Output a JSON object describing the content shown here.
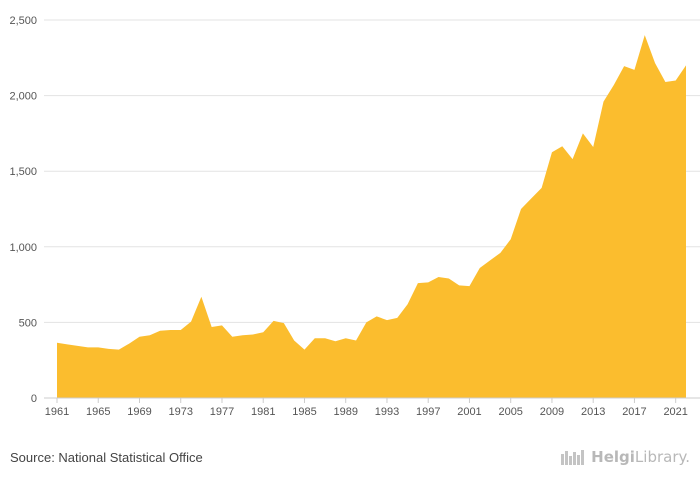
{
  "chart_data": {
    "type": "area",
    "title": "",
    "xlabel": "",
    "ylabel": "",
    "x": [
      1961,
      1962,
      1963,
      1964,
      1965,
      1966,
      1967,
      1968,
      1969,
      1970,
      1971,
      1972,
      1973,
      1974,
      1975,
      1976,
      1977,
      1978,
      1979,
      1980,
      1981,
      1982,
      1983,
      1984,
      1985,
      1986,
      1987,
      1988,
      1989,
      1990,
      1991,
      1992,
      1993,
      1994,
      1995,
      1996,
      1997,
      1998,
      1999,
      2000,
      2001,
      2002,
      2003,
      2004,
      2005,
      2006,
      2007,
      2008,
      2009,
      2010,
      2011,
      2012,
      2013,
      2014,
      2015,
      2016,
      2017,
      2018,
      2019,
      2020,
      2021,
      2022
    ],
    "values": [
      365,
      355,
      345,
      335,
      335,
      325,
      320,
      360,
      405,
      415,
      445,
      450,
      450,
      505,
      670,
      470,
      480,
      405,
      415,
      420,
      435,
      510,
      495,
      380,
      320,
      395,
      395,
      375,
      395,
      380,
      500,
      540,
      515,
      530,
      620,
      760,
      765,
      800,
      790,
      745,
      740,
      860,
      910,
      960,
      1050,
      1250,
      1320,
      1390,
      1625,
      1665,
      1580,
      1750,
      1660,
      1960,
      2070,
      2195,
      2170,
      2400,
      2215,
      2090,
      2100,
      2200
    ],
    "x_ticks": [
      "1961",
      "1965",
      "1969",
      "1973",
      "1977",
      "1981",
      "1985",
      "1989",
      "1993",
      "1997",
      "2001",
      "2005",
      "2009",
      "2013",
      "2017",
      "2021"
    ],
    "y_ticks": [
      "0",
      "500",
      "1,000",
      "1,500",
      "2,000",
      "2,500"
    ],
    "ylim": [
      0,
      2500
    ],
    "grid": true,
    "legend": "none",
    "series_color": "#fbbd2e",
    "grid_color": "#e3e3e3",
    "axis_color": "#cccccc"
  },
  "footer": {
    "source": "Source: National Statistical Office",
    "brand_primary": "Helgi",
    "brand_secondary": "Library."
  }
}
